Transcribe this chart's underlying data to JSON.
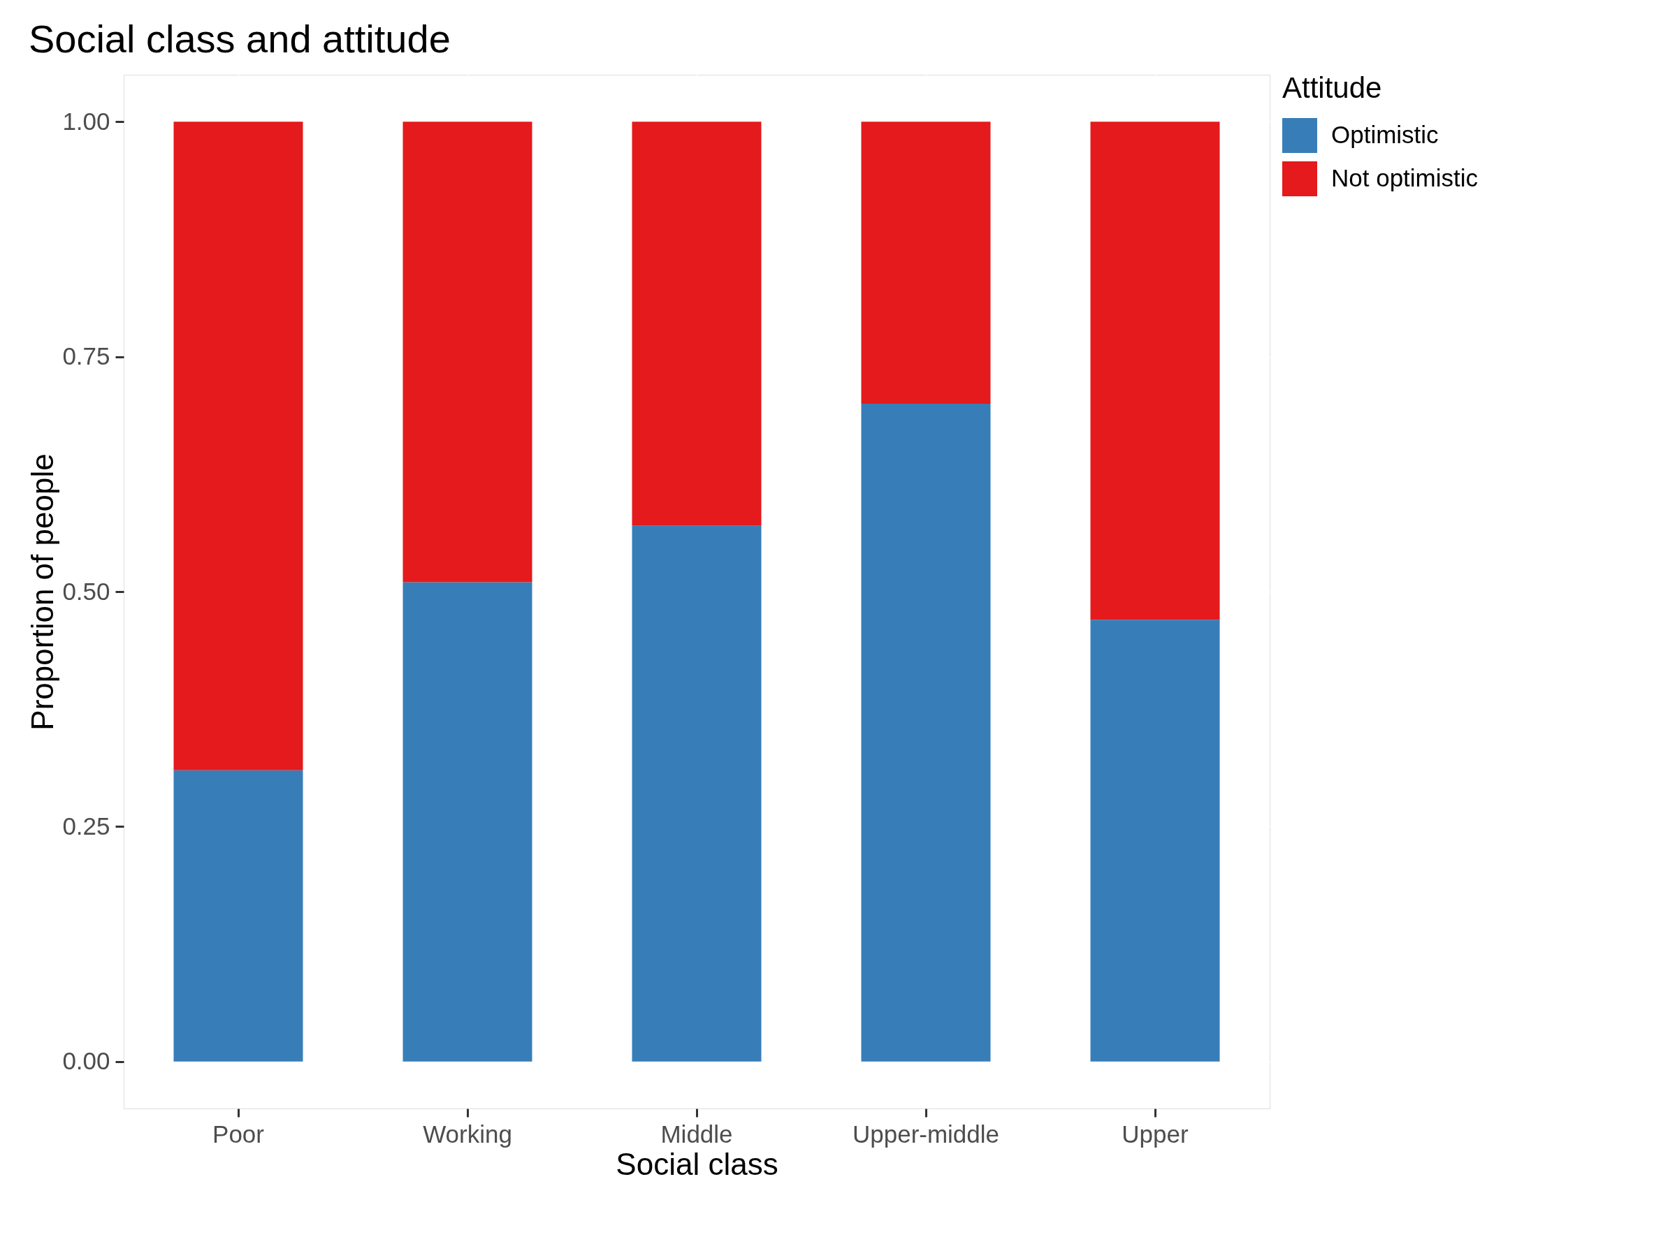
{
  "chart_data": {
    "type": "bar",
    "stacked": true,
    "title": "Social class and attitude",
    "xlabel": "Social class",
    "ylabel": "Proportion of people",
    "legend_title": "Attitude",
    "categories": [
      "Poor",
      "Working",
      "Middle",
      "Upper-middle",
      "Upper"
    ],
    "series": [
      {
        "name": "Optimistic",
        "color": "#377eb8",
        "values": [
          0.31,
          0.51,
          0.57,
          0.7,
          0.47
        ]
      },
      {
        "name": "Not optimistic",
        "color": "#e41a1c",
        "values": [
          0.69,
          0.49,
          0.43,
          0.3,
          0.53
        ]
      }
    ],
    "ylim": [
      -0.05,
      1.05
    ],
    "yticks": [
      {
        "value": 0,
        "label": "0.00"
      },
      {
        "value": 0.25,
        "label": "0.25"
      },
      {
        "value": 0.5,
        "label": "0.50"
      },
      {
        "value": 0.75,
        "label": "0.75"
      },
      {
        "value": 1,
        "label": "1.00"
      }
    ],
    "grid": true,
    "legend": "right"
  }
}
